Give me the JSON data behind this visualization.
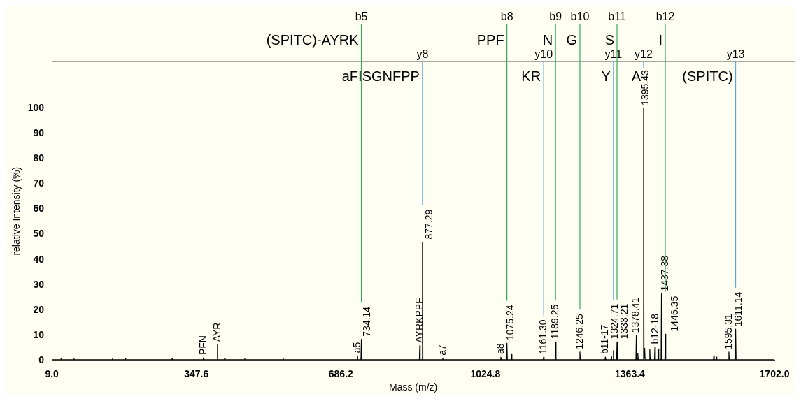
{
  "chart_data": {
    "type": "line",
    "xlabel": "Mass (m/z)",
    "ylabel": "relative Intensity (%)",
    "xlim": [
      9.0,
      1702.0
    ],
    "xticks": [
      {
        "value": 9,
        "label": "9.0"
      },
      {
        "value": 347.6,
        "label": "347.6"
      },
      {
        "value": 686.2,
        "label": "686.2"
      },
      {
        "value": 1024.8,
        "label": "1024.8"
      },
      {
        "value": 1363.4,
        "label": "1363.4"
      },
      {
        "value": 1702,
        "label": "1702.0"
      }
    ],
    "ylim": [
      0,
      118.5
    ],
    "yticks": [
      0,
      10,
      20,
      30,
      40,
      50,
      60,
      70,
      80,
      90,
      100
    ],
    "grid": false,
    "marker": "none",
    "line_style": "solid",
    "series": [
      {
        "color": "#000000",
        "x": [
          9,
          30,
          31,
          32,
          60,
          61,
          62,
          150,
          151,
          152,
          180,
          181,
          182,
          290,
          291,
          292,
          363.5,
          364.5,
          365.5,
          396,
          397,
          398,
          413,
          414,
          415,
          460,
          461,
          462,
          550,
          551,
          552,
          724,
          725,
          726,
          733.1,
          734.14,
          735.2,
          870,
          871,
          872,
          876.3,
          877.29,
          878.3,
          924,
          925,
          926,
          1060,
          1061,
          1062,
          1074.2,
          1075.24,
          1076.3,
          1085,
          1086,
          1087,
          1160.3,
          1161.3,
          1162.3,
          1188.2,
          1189.25,
          1190.3,
          1245.2,
          1246.25,
          1247.3,
          1305,
          1306,
          1307,
          1319,
          1320,
          1321,
          1323.7,
          1324.71,
          1325.7,
          1332.2,
          1333.21,
          1334.2,
          1377.4,
          1378.41,
          1379.4,
          1381,
          1382,
          1383,
          1394.4,
          1395.43,
          1396.4,
          1397,
          1398,
          1399,
          1409,
          1410,
          1411,
          1421,
          1422,
          1423,
          1429,
          1430,
          1431,
          1436.4,
          1437.38,
          1438.4,
          1445.4,
          1446.35,
          1447.4,
          1559,
          1560,
          1561,
          1565,
          1566,
          1567,
          1594.3,
          1595.31,
          1596.3,
          1610.1,
          1611.14,
          1612.2,
          1702
        ],
        "values": [
          0.4,
          0.4,
          1,
          0.4,
          0.4,
          0.8,
          0.4,
          0.4,
          0.8,
          0.4,
          0.4,
          0.9,
          0.4,
          0.4,
          0.9,
          0.4,
          0.4,
          1.2,
          0.4,
          0.4,
          6.4,
          0.4,
          0.4,
          1,
          0.4,
          0.4,
          0.8,
          0.4,
          0.4,
          1,
          0.4,
          0.4,
          2,
          0.4,
          0.4,
          8.5,
          0.4,
          0.4,
          6,
          0.4,
          0.4,
          47,
          0.4,
          0.4,
          1,
          0.4,
          0.4,
          1.5,
          0.4,
          0.4,
          7,
          0.4,
          0.4,
          2.5,
          0.4,
          0.4,
          1.5,
          0.4,
          0.4,
          7.5,
          0.4,
          0.4,
          3.5,
          0.4,
          0.4,
          1.5,
          0.4,
          0.4,
          2,
          0.4,
          0.4,
          4,
          0.4,
          0.4,
          7.5,
          0.4,
          0.4,
          10,
          0.4,
          0.4,
          3,
          0.4,
          0.4,
          100,
          0.4,
          0.4,
          5,
          0.4,
          0.4,
          4.5,
          0.4,
          0.4,
          5.5,
          0.4,
          0.4,
          4.5,
          0.4,
          0.4,
          26.5,
          0.4,
          0.4,
          10.5,
          0.4,
          0.4,
          2,
          0.4,
          0.4,
          1.5,
          0.4,
          0.4,
          3.5,
          0.4,
          0.4,
          12.5,
          0.4,
          0.4
        ]
      }
    ],
    "ref_lines": [
      {
        "axis": "x",
        "value": 734.14,
        "label": "b5",
        "color": "#3aa655"
      },
      {
        "axis": "x",
        "value": 877.29,
        "label": "y8",
        "color": "#5aa7e0"
      },
      {
        "axis": "x",
        "value": 1075.24,
        "label": "b8",
        "color": "#3aa655"
      },
      {
        "axis": "x",
        "value": 1161.3,
        "label": "y10",
        "color": "#5aa7e0"
      },
      {
        "axis": "x",
        "value": 1189.25,
        "label": "b9",
        "color": "#3aa655"
      },
      {
        "axis": "x",
        "value": 1246.25,
        "label": "b10",
        "color": "#3aa655"
      },
      {
        "axis": "x",
        "value": 1324.71,
        "label": "y11",
        "color": "#5aa7e0"
      },
      {
        "axis": "x",
        "value": 1333.21,
        "label": "b11",
        "color": "#3aa655"
      },
      {
        "axis": "x",
        "value": 1395.43,
        "label": "y12",
        "color": "#5aa7e0"
      },
      {
        "axis": "x",
        "value": 1446.35,
        "label": "b12",
        "color": "#3aa655"
      },
      {
        "axis": "x",
        "value": 1611.14,
        "label": "y13",
        "color": "#5aa7e0"
      }
    ],
    "annotations": [
      "(SPITC)-AYRK",
      "aFISGNFPP",
      "PPF",
      "KR",
      "N",
      "G",
      "Y",
      "S",
      "A",
      "I",
      "(SPITC)",
      {
        "text": "PFN",
        "x": 364.5,
        "y": 1.2
      },
      {
        "text": "AYR",
        "x": 397,
        "y": 6.4
      },
      {
        "text": "a5",
        "x": 725,
        "y": 2
      },
      {
        "text": "734.14",
        "x": 734.14,
        "y": 8.5
      },
      {
        "text": "AYRKPPF",
        "x": 871,
        "y": 6
      },
      {
        "text": "877.29",
        "x": 877.29,
        "y": 47
      },
      {
        "text": "a7",
        "x": 925,
        "y": 1
      },
      {
        "text": "a8",
        "x": 1061,
        "y": 1.5
      },
      {
        "text": "1075.24",
        "x": 1075.24,
        "y": 7
      },
      {
        "text": "1161.30",
        "x": 1161.3,
        "y": 1.5
      },
      {
        "text": "1189.25",
        "x": 1189.25,
        "y": 7.5
      },
      {
        "text": "1246.25",
        "x": 1246.25,
        "y": 3.5
      },
      {
        "text": "b11-17",
        "x": 1306,
        "y": 1.5
      },
      {
        "text": "1324.71",
        "x": 1324.71,
        "y": 4
      },
      {
        "text": "1333.21",
        "x": 1333.21,
        "y": 7.5
      },
      {
        "text": "1378.41",
        "x": 1378.41,
        "y": 10
      },
      {
        "text": "1395.43",
        "x": 1395.43,
        "y": 100
      },
      {
        "text": "b12-18",
        "x": 1422,
        "y": 5.5
      },
      {
        "text": "1437.38",
        "x": 1437.38,
        "y": 26.5
      },
      {
        "text": "1446.35",
        "x": 1446.35,
        "y": 10.5
      },
      {
        "text": "1595.31",
        "x": 1595.31,
        "y": 3.5
      },
      {
        "text": "1611.14",
        "x": 1611.14,
        "y": 12.5
      }
    ]
  }
}
